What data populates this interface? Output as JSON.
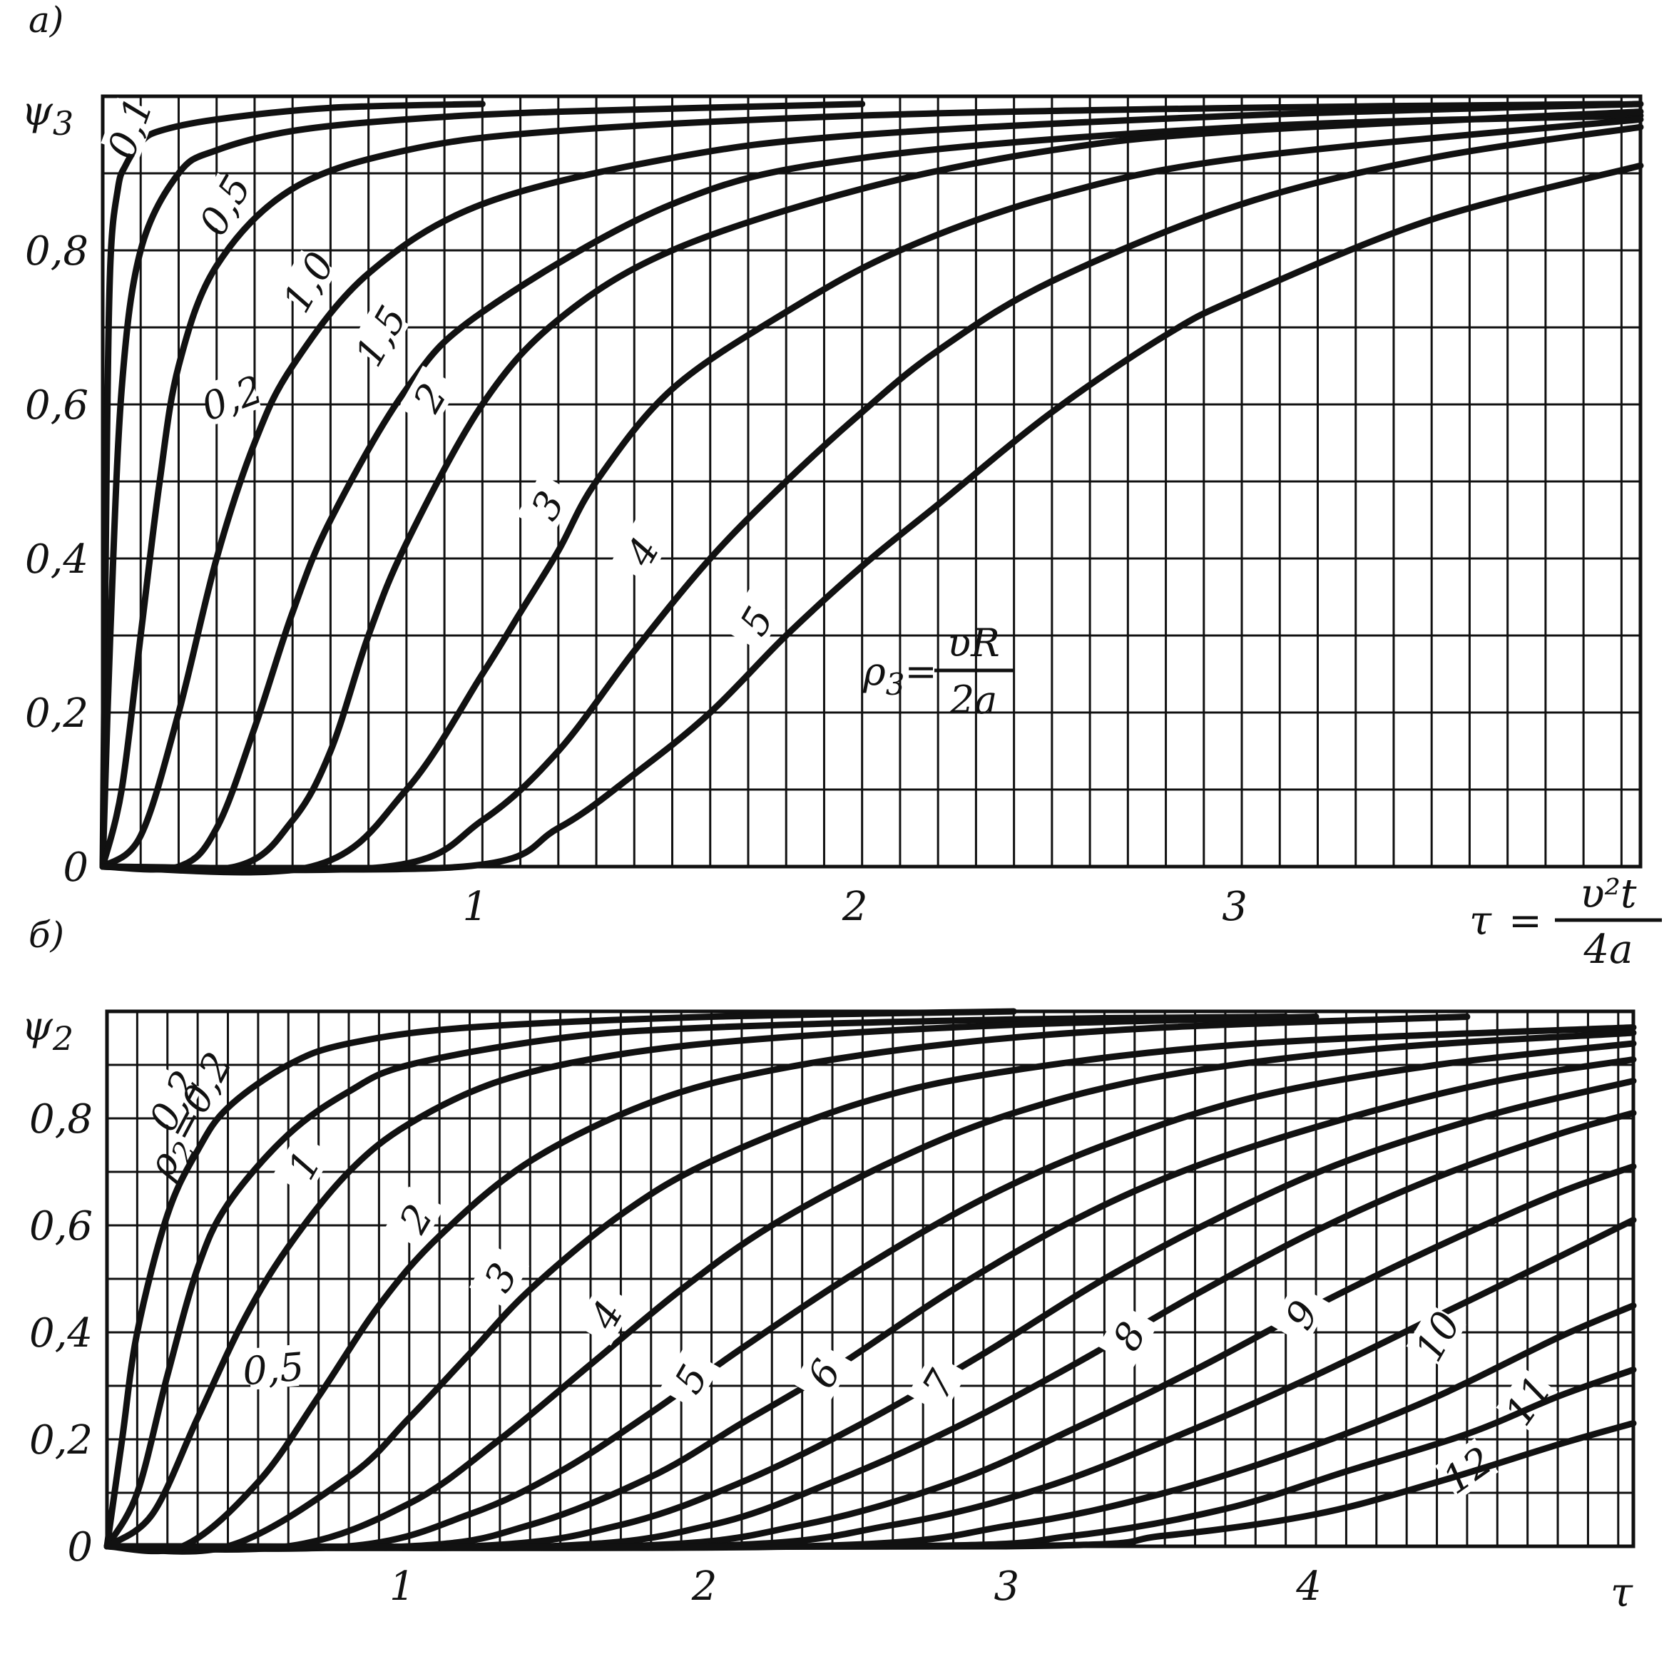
{
  "chart_data": [
    {
      "type": "line",
      "panel_label": "а)",
      "ylabel_main": "ψ",
      "ylabel_sub": "3",
      "xlabel": {
        "lhs": "τ",
        "eq": "=",
        "num": "υ²t",
        "den": "4a"
      },
      "param_label": {
        "lhs": "ρ",
        "sub": "3",
        "eq": "=",
        "num": "υR",
        "den": "2a"
      },
      "xlim": [
        0,
        4.05
      ],
      "ylim": [
        0,
        1.0
      ],
      "x_ticks": [
        {
          "v": 1,
          "label": "1"
        },
        {
          "v": 2,
          "label": "2"
        },
        {
          "v": 3,
          "label": "3"
        }
      ],
      "y_ticks": [
        {
          "v": 0,
          "label": "0"
        },
        {
          "v": 0.2,
          "label": "0,2"
        },
        {
          "v": 0.4,
          "label": "0,4"
        },
        {
          "v": 0.6,
          "label": "0,6"
        },
        {
          "v": 0.8,
          "label": "0,8"
        }
      ],
      "series": [
        {
          "name": "0,1",
          "label_at": [
            0.07,
            0.95
          ],
          "label_rot": -70,
          "x": [
            0.0,
            0.01,
            0.02,
            0.04,
            0.06,
            0.1,
            0.15,
            0.3,
            0.6,
            1.0
          ],
          "y": [
            0.0,
            0.5,
            0.78,
            0.88,
            0.91,
            0.94,
            0.955,
            0.97,
            0.985,
            0.99
          ]
        },
        {
          "name": "0,2",
          "label_at": [
            0.34,
            0.6
          ],
          "label_rot": -20,
          "x": [
            0.0,
            0.02,
            0.05,
            0.1,
            0.2,
            0.3,
            0.5,
            0.8,
            1.2,
            2.0
          ],
          "y": [
            0.0,
            0.3,
            0.62,
            0.8,
            0.9,
            0.93,
            0.955,
            0.97,
            0.98,
            0.99
          ]
        },
        {
          "name": "0,5",
          "label_at": [
            0.32,
            0.85
          ],
          "label_rot": -60,
          "x": [
            0.0,
            0.05,
            0.1,
            0.15,
            0.2,
            0.3,
            0.5,
            0.8,
            1.2,
            2.0,
            3.0,
            4.0
          ],
          "y": [
            0.0,
            0.1,
            0.3,
            0.5,
            0.65,
            0.78,
            0.88,
            0.93,
            0.955,
            0.975,
            0.985,
            0.99
          ]
        },
        {
          "name": "1,0",
          "label_at": [
            0.54,
            0.75
          ],
          "label_rot": -60,
          "x": [
            0.0,
            0.1,
            0.2,
            0.3,
            0.4,
            0.5,
            0.7,
            1.0,
            1.5,
            2.0,
            3.0,
            4.05
          ],
          "y": [
            0.0,
            0.04,
            0.2,
            0.4,
            0.55,
            0.65,
            0.77,
            0.86,
            0.92,
            0.95,
            0.975,
            0.99
          ]
        },
        {
          "name": "1,5",
          "label_at": [
            0.73,
            0.68
          ],
          "label_rot": -60,
          "x": [
            0.0,
            0.2,
            0.3,
            0.4,
            0.5,
            0.6,
            0.8,
            1.0,
            1.5,
            2.0,
            3.0,
            4.05
          ],
          "y": [
            0.0,
            0.0,
            0.05,
            0.18,
            0.33,
            0.45,
            0.62,
            0.72,
            0.86,
            0.92,
            0.96,
            0.975
          ]
        },
        {
          "name": "2",
          "label_at": [
            0.86,
            0.6
          ],
          "label_rot": -60,
          "x": [
            0.0,
            0.35,
            0.5,
            0.6,
            0.7,
            0.8,
            1.0,
            1.2,
            1.5,
            2.0,
            2.5,
            3.0,
            4.05
          ],
          "y": [
            0.0,
            0.0,
            0.06,
            0.15,
            0.3,
            0.42,
            0.6,
            0.71,
            0.8,
            0.88,
            0.93,
            0.955,
            0.98
          ]
        },
        {
          "name": "3",
          "label_at": [
            1.17,
            0.46
          ],
          "label_rot": -60,
          "x": [
            0.0,
            0.55,
            0.8,
            1.0,
            1.1,
            1.2,
            1.3,
            1.5,
            1.8,
            2.1,
            2.5,
            3.0,
            4.05
          ],
          "y": [
            0.0,
            0.0,
            0.1,
            0.25,
            0.33,
            0.41,
            0.5,
            0.62,
            0.72,
            0.8,
            0.87,
            0.92,
            0.97
          ]
        },
        {
          "name": "4",
          "label_at": [
            1.42,
            0.4
          ],
          "label_rot": -60,
          "x": [
            0.0,
            0.75,
            1.0,
            1.2,
            1.4,
            1.6,
            1.8,
            2.0,
            2.2,
            2.5,
            3.0,
            3.5,
            4.05
          ],
          "y": [
            0.0,
            0.0,
            0.06,
            0.15,
            0.28,
            0.4,
            0.5,
            0.59,
            0.67,
            0.76,
            0.86,
            0.92,
            0.96
          ]
        },
        {
          "name": "5",
          "label_at": [
            1.72,
            0.31
          ],
          "label_rot": -60,
          "x": [
            0.0,
            0.95,
            1.2,
            1.4,
            1.6,
            1.8,
            2.0,
            2.2,
            2.5,
            2.8,
            3.0,
            3.5,
            4.05
          ],
          "y": [
            0.0,
            0.0,
            0.05,
            0.12,
            0.2,
            0.3,
            0.39,
            0.47,
            0.59,
            0.69,
            0.74,
            0.84,
            0.91
          ]
        }
      ]
    },
    {
      "type": "line",
      "panel_label": "б)",
      "ylabel_main": "ψ",
      "ylabel_sub": "2",
      "xlabel": {
        "lhs": "τ"
      },
      "param_label": {
        "lhs": "ρ",
        "sub": "2",
        "eq": "=",
        "value": "0,2"
      },
      "xlim": [
        0,
        5.05
      ],
      "ylim": [
        0,
        1.0
      ],
      "x_ticks": [
        {
          "v": 1,
          "label": "1"
        },
        {
          "v": 2,
          "label": "2"
        },
        {
          "v": 3,
          "label": "3"
        },
        {
          "v": 4,
          "label": "4"
        }
      ],
      "y_ticks": [
        {
          "v": 0,
          "label": "0"
        },
        {
          "v": 0.2,
          "label": "0,2"
        },
        {
          "v": 0.4,
          "label": "0,4"
        },
        {
          "v": 0.6,
          "label": "0,6"
        },
        {
          "v": 0.8,
          "label": "0,8"
        }
      ],
      "series": [
        {
          "name": "0,2",
          "label_at": [
            0.22,
            0.82
          ],
          "label_rot": -62,
          "x": [
            0.0,
            0.05,
            0.1,
            0.2,
            0.3,
            0.4,
            0.6,
            0.8,
            1.2,
            2.0,
            3.0
          ],
          "y": [
            0.0,
            0.2,
            0.4,
            0.62,
            0.74,
            0.82,
            0.9,
            0.94,
            0.97,
            0.99,
            1.0
          ]
        },
        {
          "name": "0,5",
          "label_at": [
            0.55,
            0.32
          ],
          "label_rot": -5,
          "x": [
            0.0,
            0.1,
            0.2,
            0.3,
            0.4,
            0.6,
            0.8,
            1.0,
            1.5,
            2.0,
            3.0,
            3.9
          ],
          "y": [
            0.0,
            0.1,
            0.32,
            0.52,
            0.64,
            0.77,
            0.85,
            0.9,
            0.95,
            0.97,
            0.985,
            0.99
          ]
        },
        {
          "name": "1",
          "label_at": [
            0.65,
            0.7
          ],
          "label_rot": -60,
          "x": [
            0.0,
            0.15,
            0.3,
            0.45,
            0.6,
            0.8,
            1.0,
            1.3,
            1.7,
            2.2,
            3.0,
            4.0
          ],
          "y": [
            0.0,
            0.06,
            0.24,
            0.42,
            0.56,
            0.7,
            0.79,
            0.87,
            0.92,
            0.95,
            0.975,
            0.99
          ]
        },
        {
          "name": "2",
          "label_at": [
            1.02,
            0.6
          ],
          "label_rot": -60,
          "x": [
            0.0,
            0.25,
            0.5,
            0.7,
            0.9,
            1.1,
            1.4,
            1.8,
            2.2,
            2.8,
            3.5,
            4.5
          ],
          "y": [
            0.0,
            0.0,
            0.12,
            0.28,
            0.45,
            0.58,
            0.72,
            0.83,
            0.89,
            0.94,
            0.97,
            0.99
          ]
        },
        {
          "name": "3",
          "label_at": [
            1.3,
            0.49
          ],
          "label_rot": -60,
          "x": [
            0.0,
            0.4,
            0.8,
            1.0,
            1.2,
            1.4,
            1.7,
            2.0,
            2.5,
            3.0,
            3.8,
            5.05
          ],
          "y": [
            0.0,
            0.0,
            0.13,
            0.24,
            0.36,
            0.48,
            0.62,
            0.72,
            0.83,
            0.89,
            0.94,
            0.97
          ]
        },
        {
          "name": "4",
          "label_at": [
            1.65,
            0.42
          ],
          "label_rot": -60,
          "x": [
            0.0,
            0.6,
            1.0,
            1.3,
            1.6,
            1.9,
            2.2,
            2.6,
            3.0,
            3.5,
            4.2,
            5.05
          ],
          "y": [
            0.0,
            0.0,
            0.08,
            0.2,
            0.34,
            0.48,
            0.6,
            0.72,
            0.81,
            0.88,
            0.93,
            0.96
          ]
        },
        {
          "name": "5",
          "label_at": [
            1.93,
            0.3
          ],
          "label_rot": -60,
          "x": [
            0.0,
            0.8,
            1.2,
            1.5,
            1.8,
            2.1,
            2.5,
            2.9,
            3.3,
            3.8,
            4.4,
            5.05
          ],
          "y": [
            0.0,
            0.0,
            0.06,
            0.14,
            0.25,
            0.37,
            0.52,
            0.65,
            0.75,
            0.84,
            0.9,
            0.94
          ]
        },
        {
          "name": "6",
          "label_at": [
            2.37,
            0.31
          ],
          "label_rot": -60,
          "x": [
            0.0,
            1.0,
            1.4,
            1.8,
            2.1,
            2.4,
            2.8,
            3.2,
            3.6,
            4.1,
            4.6,
            5.05
          ],
          "y": [
            0.0,
            0.0,
            0.04,
            0.13,
            0.23,
            0.33,
            0.48,
            0.61,
            0.71,
            0.8,
            0.87,
            0.91
          ]
        },
        {
          "name": "7",
          "label_at": [
            2.75,
            0.29
          ],
          "label_rot": -60,
          "x": [
            0.0,
            1.2,
            1.7,
            2.1,
            2.5,
            2.9,
            3.3,
            3.7,
            4.1,
            4.6,
            5.05
          ],
          "y": [
            0.0,
            0.0,
            0.04,
            0.12,
            0.23,
            0.36,
            0.5,
            0.62,
            0.72,
            0.81,
            0.87
          ]
        },
        {
          "name": "8",
          "label_at": [
            3.38,
            0.38
          ],
          "label_rot": -60,
          "x": [
            0.0,
            1.45,
            2.0,
            2.4,
            2.8,
            3.2,
            3.6,
            4.0,
            4.4,
            4.8,
            5.05
          ],
          "y": [
            0.0,
            0.0,
            0.04,
            0.12,
            0.22,
            0.34,
            0.47,
            0.59,
            0.69,
            0.77,
            0.81
          ]
        },
        {
          "name": "9",
          "label_at": [
            3.95,
            0.42
          ],
          "label_rot": -60,
          "x": [
            0.0,
            1.7,
            2.3,
            2.8,
            3.2,
            3.6,
            4.0,
            4.4,
            4.8,
            5.05
          ],
          "y": [
            0.0,
            0.0,
            0.04,
            0.12,
            0.22,
            0.33,
            0.45,
            0.56,
            0.66,
            0.71
          ]
        },
        {
          "name": "10",
          "label_at": [
            4.4,
            0.38
          ],
          "label_rot": -60,
          "x": [
            0.0,
            1.95,
            2.6,
            3.1,
            3.6,
            4.0,
            4.4,
            4.8,
            5.05
          ],
          "y": [
            0.0,
            0.0,
            0.04,
            0.11,
            0.22,
            0.32,
            0.43,
            0.54,
            0.61
          ]
        },
        {
          "name": "11",
          "label_at": [
            4.7,
            0.26
          ],
          "label_rot": -55,
          "x": [
            0.0,
            2.3,
            3.0,
            3.5,
            4.0,
            4.4,
            4.8,
            5.05
          ],
          "y": [
            0.0,
            0.0,
            0.04,
            0.1,
            0.19,
            0.28,
            0.39,
            0.45
          ]
        },
        {
          "name": "12",
          "label_at": [
            4.5,
            0.13
          ],
          "label_rot": -35,
          "x": [
            0.0,
            2.6,
            3.2,
            3.7,
            4.1,
            4.5,
            4.8,
            5.05
          ],
          "y": [
            0.0,
            0.0,
            0.02,
            0.07,
            0.14,
            0.21,
            0.28,
            0.33
          ]
        },
        {
          "name": "",
          "label_at": null,
          "label_rot": 0,
          "x": [
            0.0,
            2.95,
            3.5,
            4.0,
            4.4,
            4.8,
            5.05
          ],
          "y": [
            0.0,
            0.0,
            0.02,
            0.06,
            0.12,
            0.19,
            0.23
          ]
        }
      ]
    }
  ]
}
